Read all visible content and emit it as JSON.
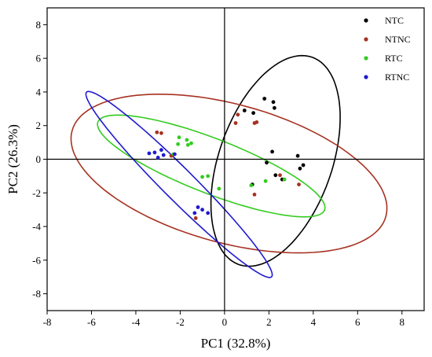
{
  "chart_data": {
    "type": "scatter",
    "xlabel": "PC1 (32.8%)",
    "ylabel": "PC2 (26.3%)",
    "xlim": [
      -8,
      9
    ],
    "ylim": [
      -9,
      9
    ],
    "xticks": [
      -8,
      -6,
      -4,
      -2,
      0,
      2,
      4,
      6,
      8
    ],
    "yticks": [
      -8,
      -6,
      -4,
      -2,
      0,
      2,
      4,
      6,
      8
    ],
    "grid": false,
    "zero_lines": true,
    "legend_position": "top-right",
    "series": [
      {
        "name": "NTC",
        "color": "#000000",
        "points": [
          [
            0.9,
            2.9
          ],
          [
            1.3,
            2.75
          ],
          [
            1.8,
            3.6
          ],
          [
            2.2,
            3.4
          ],
          [
            2.25,
            3.05
          ],
          [
            1.9,
            -0.2
          ],
          [
            2.15,
            0.45
          ],
          [
            2.6,
            -1.2
          ],
          [
            3.3,
            0.2
          ],
          [
            3.4,
            -0.55
          ],
          [
            3.55,
            -0.35
          ],
          [
            1.25,
            -1.5
          ],
          [
            2.3,
            -0.95
          ]
        ]
      },
      {
        "name": "NTNC",
        "color": "#a63222",
        "points": [
          [
            0.5,
            2.15
          ],
          [
            0.6,
            2.65
          ],
          [
            1.35,
            2.15
          ],
          [
            1.45,
            2.2
          ],
          [
            1.35,
            -2.1
          ],
          [
            2.5,
            -0.95
          ],
          [
            3.35,
            -1.5
          ],
          [
            -3.05,
            1.6
          ],
          [
            -2.85,
            1.55
          ],
          [
            -2.4,
            0.2
          ],
          [
            -1.3,
            -3.5
          ]
        ]
      },
      {
        "name": "RTC",
        "color": "#34cc20",
        "points": [
          [
            -2.05,
            1.3
          ],
          [
            -2.1,
            0.9
          ],
          [
            -1.7,
            1.15
          ],
          [
            -1.5,
            0.95
          ],
          [
            -1.65,
            0.85
          ],
          [
            -2.3,
            0.3
          ],
          [
            -1.0,
            -1.05
          ],
          [
            -0.75,
            -1.0
          ],
          [
            -0.25,
            -1.75
          ],
          [
            1.2,
            -1.55
          ],
          [
            1.85,
            -1.3
          ],
          [
            2.7,
            -1.2
          ]
        ]
      },
      {
        "name": "RTNC",
        "color": "#1f1ad0",
        "points": [
          [
            -3.4,
            0.35
          ],
          [
            -3.15,
            0.4
          ],
          [
            -2.85,
            0.55
          ],
          [
            -3.0,
            0.1
          ],
          [
            -2.75,
            0.25
          ],
          [
            -2.25,
            0.3
          ],
          [
            -1.35,
            -3.2
          ],
          [
            -1.2,
            -2.85
          ],
          [
            -1.0,
            -3.0
          ],
          [
            -0.75,
            -3.2
          ]
        ]
      }
    ],
    "ellipses": [
      {
        "series": "NTC",
        "color": "#000000",
        "center": [
          2.3,
          -0.1
        ],
        "rx": 2.6,
        "ry": 6.4,
        "rotation": -13
      },
      {
        "series": "NTNC",
        "color": "#a63222",
        "center": [
          0.2,
          -0.85
        ],
        "rx": 7.55,
        "ry": 4.0,
        "rotation": -23
      },
      {
        "series": "RTC",
        "color": "#34cc20",
        "center": [
          -0.6,
          -0.4
        ],
        "rx": 5.75,
        "ry": 1.55,
        "rotation": -28
      },
      {
        "series": "RTNC",
        "color": "#1f1ad0",
        "center": [
          -2.05,
          -1.5
        ],
        "rx": 6.9,
        "ry": 0.8,
        "rotation": -53
      }
    ]
  }
}
